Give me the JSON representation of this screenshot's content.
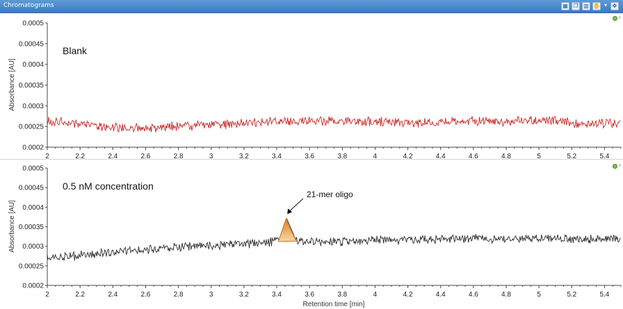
{
  "window": {
    "title": "Chromatograms",
    "toolbar_icons": [
      "zoom-fit-icon",
      "copy-icon",
      "chart-icon",
      "pan-icon",
      "dropdown-arrow-icon",
      "move-icon"
    ]
  },
  "colors": {
    "blank_trace": "#c62828",
    "sample_trace": "#2b2b2b",
    "peak_fill": "#f3a847",
    "titlebar": "#4a8bcb"
  },
  "chart_data": [
    {
      "type": "line",
      "panel_label": "Blank",
      "xlabel": "",
      "ylabel": "Absorbance [AU]",
      "xlim": [
        2.0,
        5.5
      ],
      "ylim": [
        0.0002,
        0.0005
      ],
      "x_ticks": [
        "2",
        "2.2",
        "2.4",
        "2.6",
        "2.8",
        "3",
        "3.2",
        "3.4",
        "3.6",
        "3.8",
        "4",
        "4.2",
        "4.4",
        "4.6",
        "4.8",
        "5",
        "5.2",
        "5.4"
      ],
      "y_ticks": [
        "0.0002",
        "0.00025",
        "0.0003",
        "0.00035",
        "0.0004",
        "0.00045",
        "0.0005"
      ],
      "grid": false,
      "series": [
        {
          "color": "#c62828",
          "x": [
            2.0,
            2.2,
            2.4,
            2.6,
            2.8,
            3.0,
            3.2,
            3.4,
            3.6,
            3.8,
            4.0,
            4.2,
            4.4,
            4.6,
            4.8,
            5.0,
            5.2,
            5.4,
            5.5
          ],
          "y": [
            0.000262,
            0.000256,
            0.000248,
            0.000247,
            0.000251,
            0.000254,
            0.000258,
            0.000262,
            0.000264,
            0.000262,
            0.000261,
            0.000259,
            0.000262,
            0.000264,
            0.000262,
            0.000266,
            0.000258,
            0.000258,
            0.000256
          ]
        }
      ]
    },
    {
      "type": "line",
      "panel_label": "0.5 nM concentration",
      "xlabel": "Retention time [min]",
      "ylabel": "Absorbance [AU]",
      "xlim": [
        2.0,
        5.5
      ],
      "ylim": [
        0.0002,
        0.0005
      ],
      "x_ticks": [
        "2",
        "2.2",
        "2.4",
        "2.6",
        "2.8",
        "3",
        "3.2",
        "3.4",
        "3.6",
        "3.8",
        "4",
        "4.2",
        "4.4",
        "4.6",
        "4.8",
        "5",
        "5.2",
        "5.4"
      ],
      "y_ticks": [
        "0.0002",
        "0.00025",
        "0.0003",
        "0.00035",
        "0.0004",
        "0.00045",
        "0.0005"
      ],
      "grid": false,
      "series": [
        {
          "color": "#2b2b2b",
          "x": [
            2.0,
            2.2,
            2.4,
            2.6,
            2.8,
            3.0,
            3.2,
            3.4,
            3.6,
            3.8,
            4.0,
            4.2,
            4.4,
            4.6,
            4.8,
            5.0,
            5.2,
            5.4,
            5.5
          ],
          "y": [
            0.000268,
            0.000276,
            0.000284,
            0.000291,
            0.000298,
            0.000303,
            0.000307,
            0.000312,
            0.000314,
            0.000313,
            0.000315,
            0.000317,
            0.000318,
            0.000319,
            0.00032,
            0.000321,
            0.000319,
            0.000319,
            0.000318
          ]
        }
      ],
      "peak": {
        "x_start": 3.41,
        "x_apex": 3.46,
        "x_end": 3.52,
        "apex_y": 0.000372,
        "fill": "#f3a847"
      },
      "annotation": {
        "text": "21-mer oligo",
        "arrow_to_x": 3.46,
        "arrow_to_y": 0.000375
      }
    }
  ]
}
